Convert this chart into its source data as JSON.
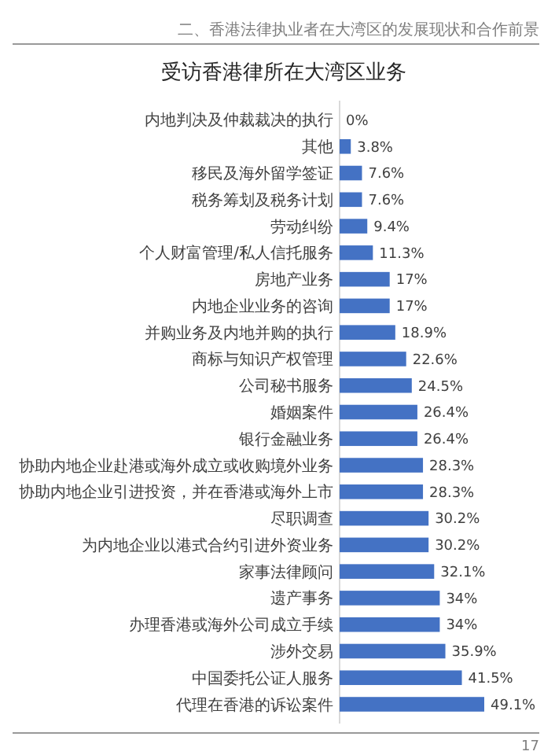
{
  "chart_data": {
    "type": "bar",
    "orientation": "horizontal",
    "title": "受访香港律所在大湾区业务",
    "subtitle": "二、香港法律执业者在大湾区的发展现状和合作前景",
    "categories": [
      "内地判决及仲裁裁决的执行",
      "其他",
      "移民及海外留学签证",
      "税务筹划及税务计划",
      "劳动纠纷",
      "个人财富管理/私人信托服务",
      "房地产业务",
      "内地企业业务的咨询",
      "并购业务及内地并购的执行",
      "商标与知识产权管理",
      "公司秘书服务",
      "婚姻案件",
      "银行金融业务",
      "协助内地企业赴港或海外成立或收购境外业务",
      "协助内地企业引进投资，并在香港或海外上市",
      "尽职调查",
      "为内地企业以港式合约引进外资业务",
      "家事法律顾问",
      "遗产事务",
      "办理香港或海外公司成立手续",
      "涉外交易",
      "中国委托公证人服务",
      "代理在香港的诉讼案件"
    ],
    "values": [
      0,
      3.8,
      7.6,
      7.6,
      9.4,
      11.3,
      17,
      17,
      18.9,
      22.6,
      24.5,
      26.4,
      26.4,
      28.3,
      28.3,
      30.2,
      30.2,
      32.1,
      34,
      34,
      35.9,
      41.5,
      49.1
    ],
    "value_labels": [
      "0%",
      "3.8%",
      "7.6%",
      "7.6%",
      "9.4%",
      "11.3%",
      "17%",
      "17%",
      "18.9%",
      "22.6%",
      "24.5%",
      "26.4%",
      "26.4%",
      "28.3%",
      "28.3%",
      "30.2%",
      "30.2%",
      "32.1%",
      "34%",
      "34%",
      "35.9%",
      "41.5%",
      "49.1%"
    ],
    "color": "#4472c4",
    "xlim": [
      0,
      49.1
    ],
    "tick_labels": "y",
    "annotations": [
      "17"
    ]
  }
}
